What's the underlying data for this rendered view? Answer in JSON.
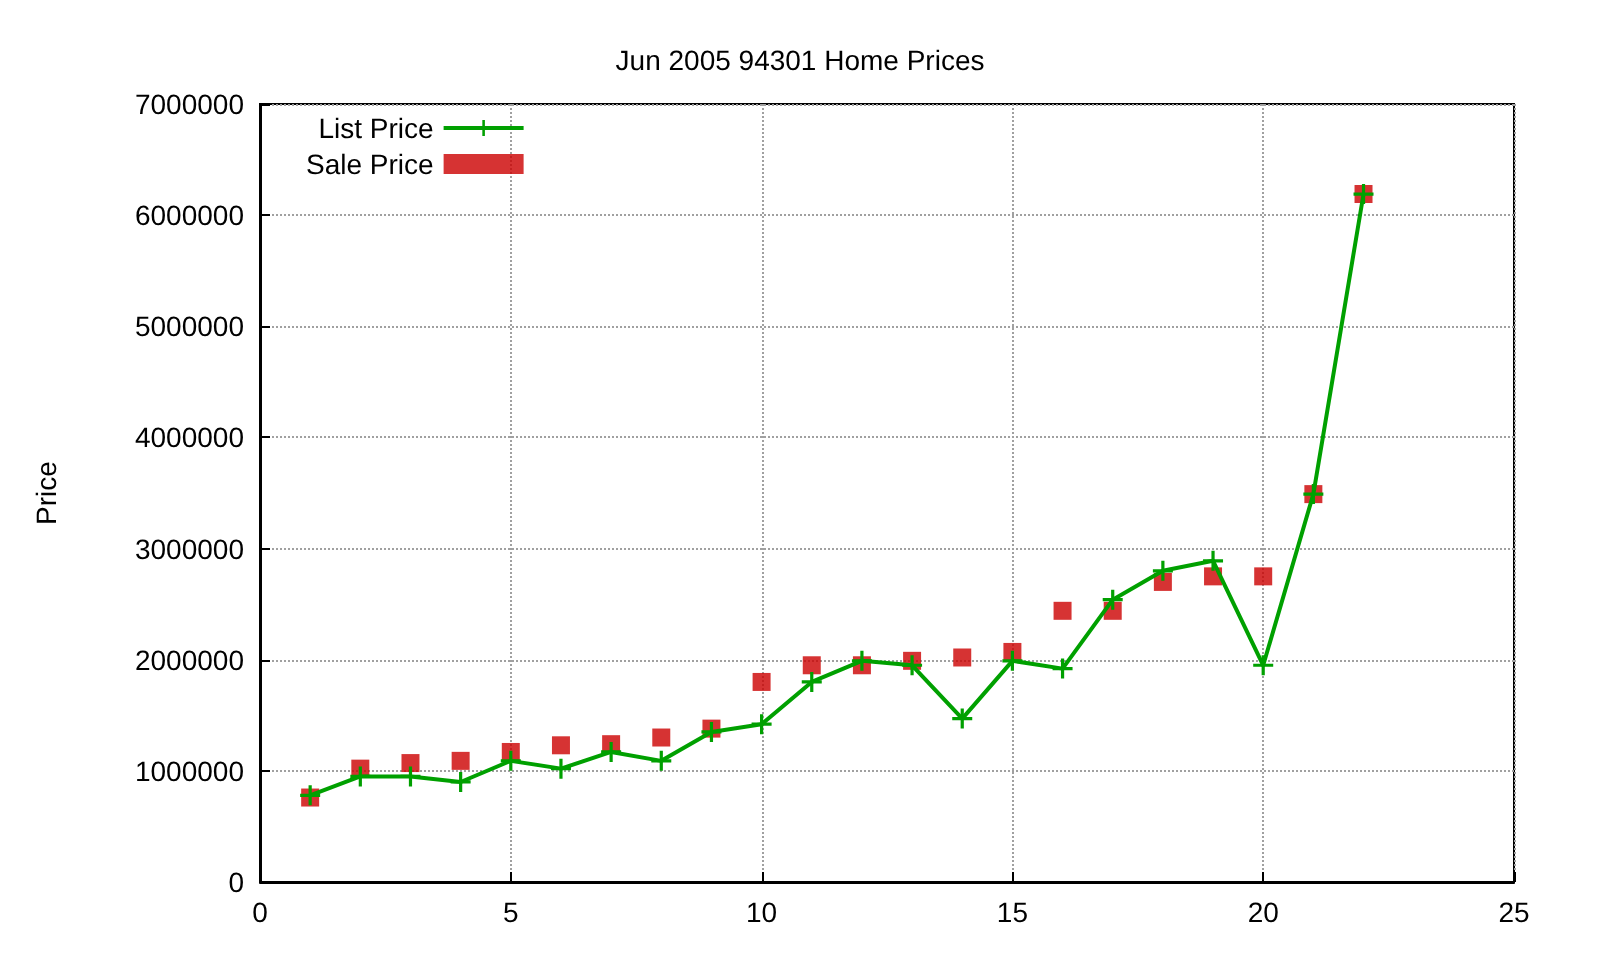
{
  "chart_data": {
    "type": "line",
    "title": "Jun 2005 94301 Home Prices",
    "ylabel": "Price",
    "x": [
      1,
      2,
      3,
      4,
      5,
      6,
      7,
      8,
      9,
      10,
      11,
      12,
      13,
      14,
      15,
      16,
      17,
      18,
      19,
      20,
      21,
      22
    ],
    "series": [
      {
        "name": "List Price",
        "color": "#00a000",
        "marker": "cross",
        "line_style": "solid",
        "values": [
          780000,
          950000,
          950000,
          900000,
          1090000,
          1020000,
          1170000,
          1090000,
          1350000,
          1420000,
          1800000,
          1990000,
          1950000,
          1470000,
          1990000,
          1920000,
          2540000,
          2800000,
          2890000,
          1950000,
          3490000,
          6190000
        ]
      },
      {
        "name": "Sale Price",
        "type": "scatter",
        "color": "#cc0000",
        "marker": "square",
        "values": [
          760000,
          1020000,
          1070000,
          1090000,
          1170000,
          1230000,
          1240000,
          1300000,
          1380000,
          1800000,
          1950000,
          1950000,
          1990000,
          2020000,
          2070000,
          2440000,
          2440000,
          2700000,
          2750000,
          2750000,
          3490000,
          6190000
        ]
      }
    ],
    "xlim": [
      0,
      25
    ],
    "xticks": [
      0,
      5,
      10,
      15,
      20,
      25
    ],
    "ylim": [
      0,
      7000000
    ],
    "yticks": [
      0,
      1000000,
      2000000,
      3000000,
      4000000,
      5000000,
      6000000,
      7000000
    ],
    "grid": true,
    "legend": "top left"
  }
}
